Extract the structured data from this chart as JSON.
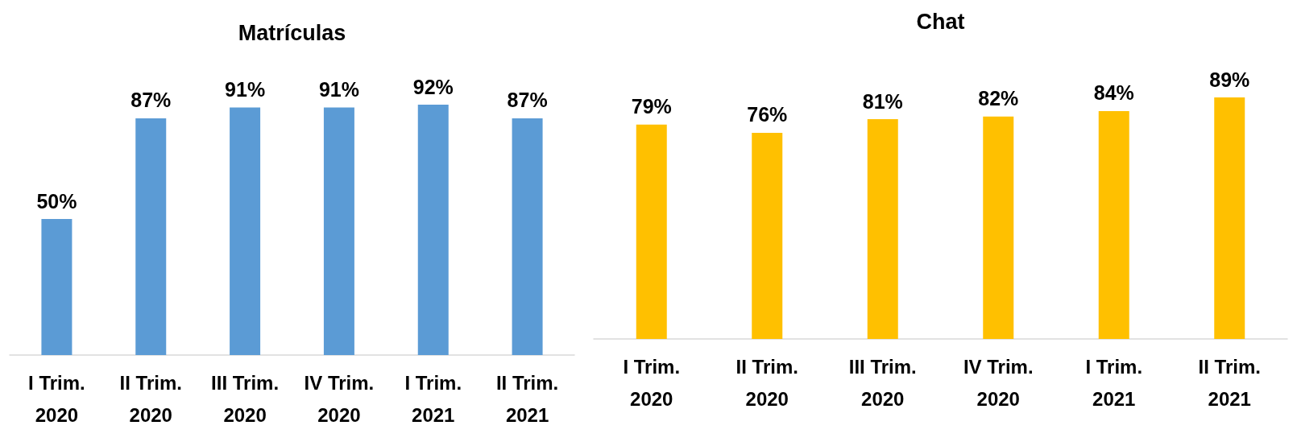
{
  "chart_data": [
    {
      "type": "bar",
      "title": "Matrículas",
      "categories": [
        "I Trim.\n2020",
        "II Trim.\n2020",
        "III Trim.\n2020",
        "IV Trim.\n2020",
        "I Trim.\n2021",
        "II Trim.\n2021"
      ],
      "values": [
        50,
        87,
        91,
        91,
        92,
        87
      ],
      "value_labels": [
        "50%",
        "87%",
        "91%",
        "91%",
        "92%",
        "87%"
      ],
      "color": "#5b9bd5",
      "tick_labels": "x"
    },
    {
      "type": "bar",
      "title": "Chat",
      "categories": [
        "I Trim.\n2020",
        "II Trim.\n2020",
        "III Trim.\n2020",
        "IV Trim.\n2020",
        "I Trim.\n2021",
        "II Trim.\n2021"
      ],
      "values": [
        79,
        76,
        81,
        82,
        84,
        89
      ],
      "value_labels": [
        "79%",
        "76%",
        "81%",
        "82%",
        "84%",
        "89%"
      ],
      "color": "#ffc000",
      "tick_labels": "x"
    }
  ]
}
